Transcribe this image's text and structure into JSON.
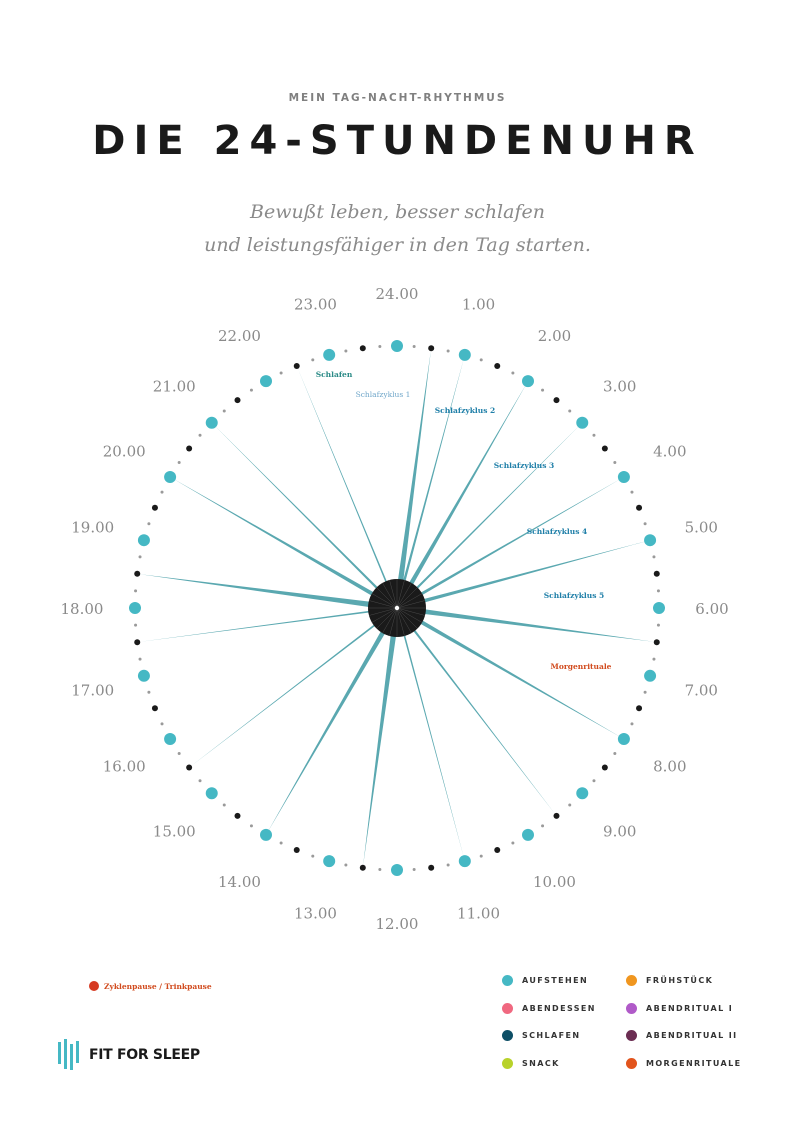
{
  "header": {
    "kicker": "MEIN TAG-NACHT-RHYTHMUS",
    "title": "DIE 24-STUNDENUHR",
    "subtitle_line1": "Bewußt leben, besser schlafen",
    "subtitle_line2": "und leistungsfähiger in den Tag starten."
  },
  "clock": {
    "hours": [
      "24.00",
      "1.00",
      "2.00",
      "3.00",
      "4.00",
      "5.00",
      "6.00",
      "7.00",
      "8.00",
      "9.00",
      "10.00",
      "11.00",
      "12.00",
      "13.00",
      "14.00",
      "15.00",
      "16.00",
      "17.00",
      "18.00",
      "19.00",
      "20.00",
      "21.00",
      "22.00",
      "23.00"
    ],
    "segment_labels": [
      {
        "text": "Schlafen",
        "color": "#2a8a86"
      },
      {
        "text": "Schlafzyklus 1",
        "color": "#6fa6c9"
      },
      {
        "text": "Schlafzyklus 2",
        "color": "#1f7fa8"
      },
      {
        "text": "Schlafzyklus 3",
        "color": "#1f7fa8"
      },
      {
        "text": "Schlafzyklus 4",
        "color": "#1f7fa8"
      },
      {
        "text": "Schlafzyklus 5",
        "color": "#1f7fa8"
      },
      {
        "text": "Morgenrituale",
        "color": "#d14b1e"
      }
    ],
    "colors": {
      "hour_dot": "#45b8c4",
      "half_dot": "#1a1a1a",
      "minor_dot": "#9a9a9a",
      "ray": "#5aa8b0",
      "hub": "#1a1a1a",
      "hour_label": "#8a8a8a"
    }
  },
  "pause_legend": {
    "label": "Zyklenpause / Trinkpause",
    "color": "#d63a22"
  },
  "legend": [
    {
      "label": "AUFSTEHEN",
      "color": "#45b8c4"
    },
    {
      "label": "FRÜHSTÜCK",
      "color": "#f0961f"
    },
    {
      "label": "ABENDESSEN",
      "color": "#f06880"
    },
    {
      "label": "ABENDRITUAL I",
      "color": "#b05ac8"
    },
    {
      "label": "SCHLAFEN",
      "color": "#0e4f66"
    },
    {
      "label": "ABENDRITUAL II",
      "color": "#6b2d52"
    },
    {
      "label": "SNACK",
      "color": "#b8d22a"
    },
    {
      "label": "MORGENRITUALE",
      "color": "#e2541c"
    }
  ],
  "logo": {
    "brand": "FIT FOR SLEEP"
  }
}
